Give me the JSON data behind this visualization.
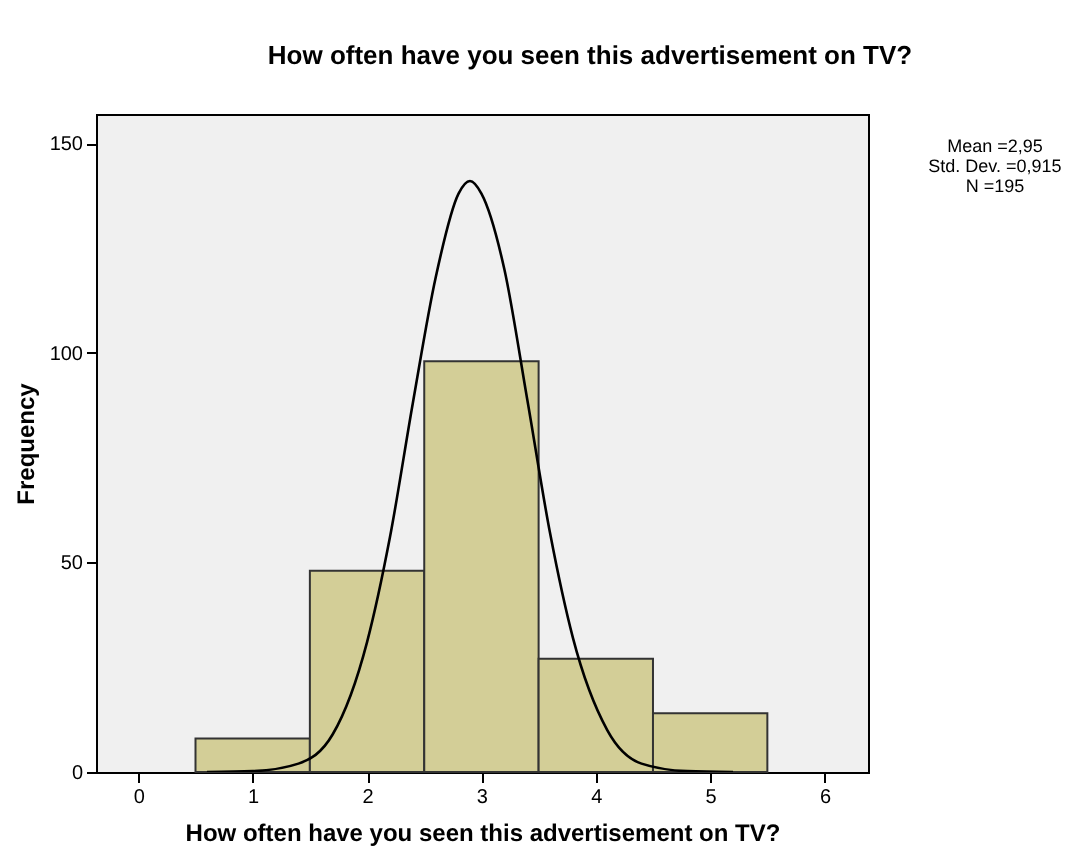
{
  "chart_data": {
    "type": "histogram",
    "title": "How often have you seen this advertisement on TV?",
    "xlabel": "How often have you seen this advertisement on TV?",
    "ylabel": "Frequency",
    "annotations": [
      "Mean =2,95",
      "Std. Dev. =0,915",
      "N =195"
    ],
    "xlim": [
      -0.37,
      6.38
    ],
    "xticks": [
      0,
      1,
      2,
      3,
      4,
      5,
      6
    ],
    "ylim": [
      0,
      157
    ],
    "yticks": [
      0,
      50,
      100,
      150
    ],
    "series": [
      {
        "color": "#d3ce97",
        "bins": [
          0.5,
          1.5,
          2.5,
          3.5,
          4.5,
          5.5
        ],
        "values": [
          8,
          48,
          98,
          27,
          14
        ]
      },
      {
        "type": "line",
        "color": "#000000",
        "x": [
          0.6,
          1.0,
          1.4,
          1.7,
          2.0,
          2.2,
          2.4,
          2.6,
          2.8,
          2.9,
          3.0,
          3.2,
          3.4,
          3.6,
          3.8,
          4.1,
          4.4,
          4.8,
          5.2
        ],
        "values": [
          0,
          0.2,
          2,
          9,
          31,
          56,
          88,
          118,
          138,
          141,
          138,
          120,
          89,
          57,
          32,
          10,
          2,
          0.2,
          0
        ]
      }
    ]
  }
}
